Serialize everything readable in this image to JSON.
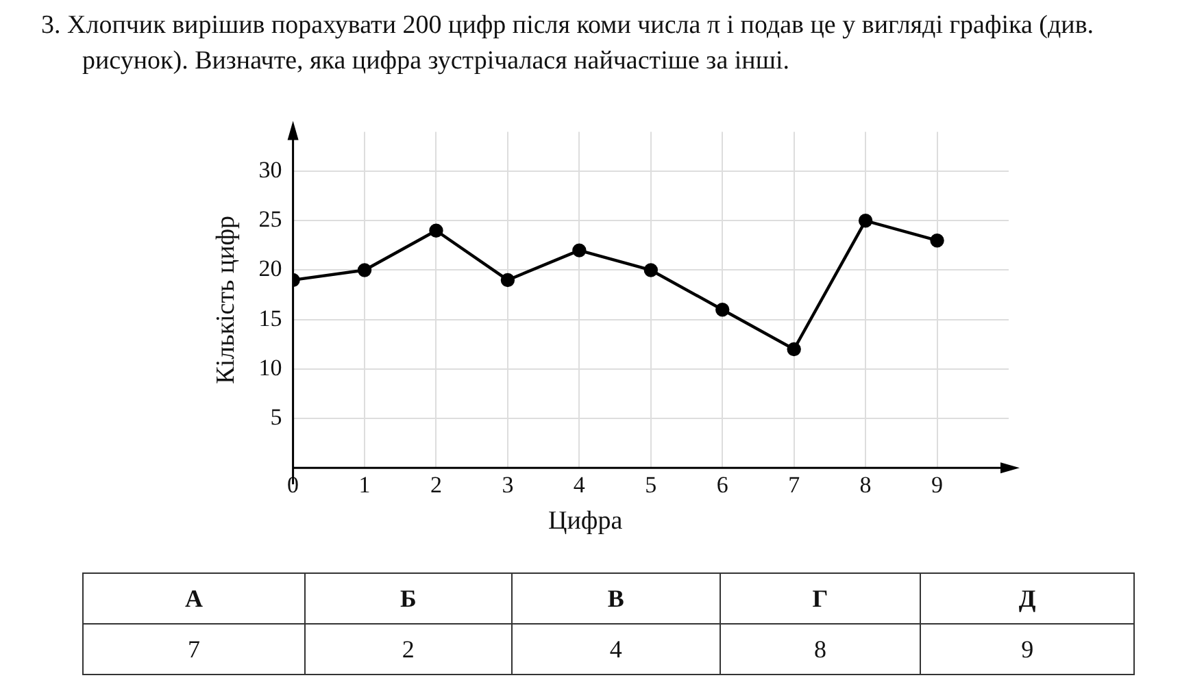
{
  "chart_data": {
    "type": "line",
    "title": "3. Хлопчик вирішив порахувати 200 цифр після коми числа π і подав це у вигляді графіка (див. рисунок). Визначте, яка цифра зустрічалася найчастіше за інші.",
    "xlabel": "Цифра",
    "ylabel": "Кількість цифр",
    "x": [
      0,
      1,
      2,
      3,
      4,
      5,
      6,
      7,
      8,
      9
    ],
    "values": [
      19,
      20,
      24,
      19,
      22,
      20,
      16,
      12,
      25,
      23
    ],
    "color": "#000000",
    "marker": "circle",
    "line_style": "solid",
    "xlim": [
      0,
      10
    ],
    "xticks": [
      0,
      1,
      2,
      3,
      4,
      5,
      6,
      7,
      8,
      9
    ],
    "ylim": [
      0,
      34
    ],
    "yticks": [
      5,
      10,
      15,
      20,
      25,
      30
    ],
    "grid": true,
    "legend": false,
    "annotations": [
      "А",
      "Б",
      "В",
      "Г",
      "Д",
      "7",
      "2",
      "4",
      "8",
      "9"
    ]
  }
}
